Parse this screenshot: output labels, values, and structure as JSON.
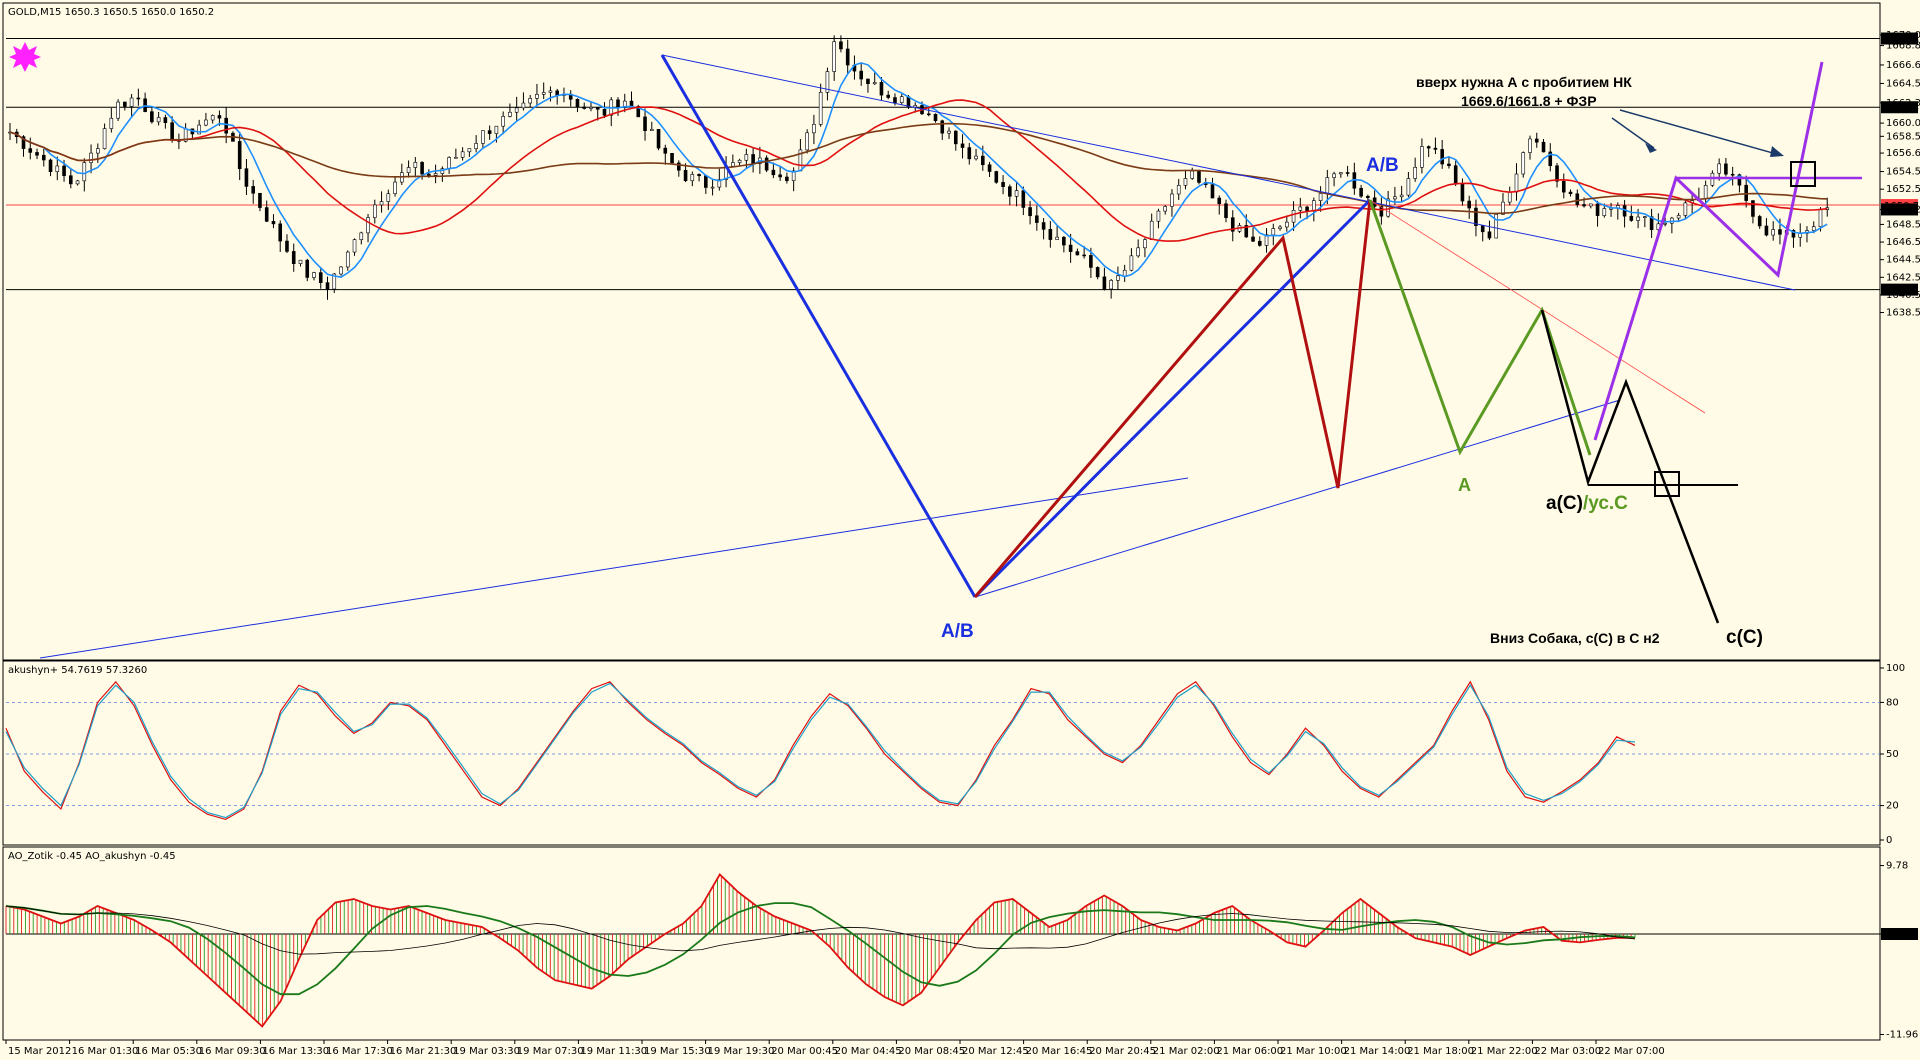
{
  "window": {
    "symbol_header": "GOLD,M15  1650.3 1650.5 1650.0 1650.2",
    "pink_marker": "star-marker-icon"
  },
  "colors": {
    "background": "#fffbe6",
    "candle": "#000000",
    "ma_fast": "#1e90ff",
    "ma_mid": "#e01010",
    "ma_slow": "#7a3b16",
    "envelope": "#000000",
    "wave_ab_blue": "#1a2fe0",
    "wave_red": "#b01010",
    "wave_green": "#5a9a22",
    "wave_violet": "#9b30e8",
    "wave_black": "#000000",
    "level_red": "#ff4040",
    "grid_dashed": "#5a7de0"
  },
  "chart_data": [
    {
      "type": "line",
      "title": "GOLD,M15  1650.3 1650.5 1650.0 1650.2",
      "subtype": "candlestick",
      "ylim": [
        1637.5,
        1671.0
      ],
      "y_ticks": [
        "1670.0",
        "1668.8",
        "1666.6",
        "1664.5",
        "1662.3",
        "1660.0",
        "1658.5",
        "1656.6",
        "1654.5",
        "1652.5",
        "1650.2",
        "1648.5",
        "1646.5",
        "1644.5",
        "1642.5",
        "1640.5",
        "1638.5"
      ],
      "price_labels": [
        {
          "value": 1669.6,
          "label": "1669.6",
          "style": "black"
        },
        {
          "value": 1661.8,
          "label": "1661.8",
          "style": "black"
        },
        {
          "value": 1650.7,
          "label": "1650.7",
          "style": "red"
        },
        {
          "value": 1650.2,
          "label": "1650.2",
          "style": "black"
        },
        {
          "value": 1641.1,
          "label": "1641.1",
          "style": "black"
        }
      ],
      "x_ticks": [
        "15 Mar 2012",
        "16 Mar 01:30",
        "16 Mar 05:30",
        "16 Mar 09:30",
        "16 Mar 13:30",
        "16 Mar 17:30",
        "16 Mar 21:30",
        "19 Mar 03:30",
        "19 Mar 07:30",
        "19 Mar 11:30",
        "19 Mar 15:30",
        "19 Mar 19:30",
        "20 Mar 00:45",
        "20 Mar 04:45",
        "20 Mar 08:45",
        "20 Mar 12:45",
        "20 Mar 16:45",
        "20 Mar 20:45",
        "21 Mar 02:00",
        "21 Mar 06:00",
        "21 Mar 10:00",
        "21 Mar 14:00",
        "21 Mar 18:00",
        "21 Mar 22:00",
        "22 Mar 03:00",
        "22 Mar 07:00"
      ],
      "price_path": [
        1659,
        1657,
        1655,
        1653,
        1657,
        1662,
        1663,
        1660,
        1658,
        1660,
        1661,
        1654,
        1650,
        1646,
        1643,
        1641.5,
        1645,
        1650,
        1653,
        1655,
        1654,
        1656,
        1658,
        1660,
        1661,
        1663,
        1664,
        1662,
        1661,
        1663,
        1660,
        1656,
        1654,
        1653,
        1655,
        1656,
        1655,
        1654,
        1660,
        1669.6,
        1666,
        1664,
        1663,
        1662,
        1660,
        1657,
        1655,
        1653,
        1651,
        1648,
        1646,
        1644,
        1641.2,
        1644,
        1648,
        1652,
        1654,
        1651,
        1648,
        1646,
        1648,
        1650,
        1652,
        1655,
        1652,
        1650,
        1653,
        1658,
        1655,
        1650,
        1647,
        1653,
        1659,
        1655,
        1651,
        1650,
        1651,
        1649,
        1648.5,
        1650,
        1652,
        1655,
        1652,
        1648,
        1647,
        1648,
        1650.2
      ],
      "annotations": [
        {
          "text": "A/B",
          "value": 1662.4,
          "color": "#1a2fe0"
        },
        {
          "text": "A/B",
          "value": 1639.9,
          "color": "#1a2fe0"
        },
        {
          "text": "A",
          "value": 1647.2,
          "color": "#5a9a22"
        },
        {
          "text": "a(C)",
          "value": 1646.2,
          "color": "#000000"
        },
        {
          "text": "/ус.С",
          "value": 1646.2,
          "color": "#5a9a22"
        },
        {
          "text": "c(C)",
          "value": 1639.3,
          "color": "#000000"
        },
        {
          "text": "вверх нужна А с пробитием НК",
          "value": 1668.0,
          "color": "#000000"
        },
        {
          "text": "1669.6/1661.8 + ФЗР",
          "value": 1667.3,
          "color": "#000000"
        },
        {
          "text": "Вниз Собака, с(С) в С н2",
          "value": 1639.3,
          "color": "#000000"
        }
      ]
    },
    {
      "type": "line",
      "title": "akushyn+ 54.7619 57.3260",
      "ylim": [
        0,
        100
      ],
      "y_ticks": [
        "100",
        "80",
        "50",
        "20",
        "0"
      ],
      "series": [
        {
          "name": "akushyn+ 54.7619",
          "values": [
            65,
            40,
            28,
            18,
            45,
            80,
            92,
            78,
            55,
            35,
            22,
            15,
            12,
            18,
            40,
            75,
            90,
            85,
            72,
            62,
            68,
            80,
            78,
            70,
            55,
            40,
            25,
            20,
            30,
            45,
            60,
            75,
            88,
            92,
            80,
            70,
            62,
            55,
            45,
            38,
            30,
            25,
            35,
            55,
            72,
            85,
            78,
            65,
            50,
            40,
            30,
            22,
            20,
            35,
            55,
            70,
            88,
            85,
            70,
            60,
            50,
            45,
            55,
            70,
            85,
            92,
            78,
            60,
            45,
            38,
            50,
            65,
            55,
            40,
            30,
            25,
            35,
            45,
            55,
            75,
            92,
            70,
            40,
            25,
            22,
            28,
            35,
            45,
            60,
            55
          ]
        },
        {
          "name": "57.3260",
          "values": [
            63,
            42,
            30,
            20,
            44,
            78,
            90,
            80,
            57,
            37,
            24,
            16,
            13,
            19,
            39,
            73,
            88,
            86,
            74,
            63,
            67,
            79,
            79,
            71,
            57,
            42,
            27,
            21,
            29,
            44,
            59,
            74,
            86,
            91,
            81,
            71,
            63,
            56,
            46,
            39,
            31,
            26,
            34,
            53,
            70,
            83,
            79,
            66,
            52,
            41,
            31,
            23,
            21,
            34,
            53,
            69,
            86,
            86,
            72,
            61,
            51,
            46,
            54,
            68,
            83,
            90,
            79,
            62,
            47,
            39,
            49,
            63,
            56,
            42,
            31,
            26,
            34,
            44,
            54,
            73,
            90,
            72,
            42,
            27,
            23,
            27,
            34,
            44,
            58,
            57
          ]
        }
      ]
    },
    {
      "type": "bar",
      "title": "AO_Zotik -0.45  AO_akushyn -0.45",
      "ylim": [
        -11.96,
        9.78
      ],
      "y_ticks": [
        "9.78",
        "0.00",
        "-11.96"
      ],
      "series": [
        {
          "name": "AO_Zotik -0.45",
          "values": [
            4,
            3.5,
            2.5,
            1.5,
            2.5,
            4,
            3,
            2,
            0.5,
            -1,
            -3,
            -5,
            -7,
            -9,
            -11,
            -8,
            -3,
            2,
            4.5,
            5,
            4,
            3.5,
            4,
            3,
            2,
            1.5,
            1,
            -0.5,
            -2,
            -4,
            -5.5,
            -6,
            -6.5,
            -5,
            -3,
            -1.5,
            0,
            1.5,
            4,
            8.5,
            6,
            4,
            2.5,
            1.5,
            0.5,
            -1.5,
            -4,
            -6,
            -7.5,
            -8.5,
            -7,
            -4,
            -1,
            2,
            4.5,
            5,
            3,
            1,
            2,
            4,
            5.5,
            4,
            2,
            1,
            0.5,
            1.5,
            3,
            4,
            2,
            0.5,
            -1,
            -1.5,
            0.5,
            3,
            5,
            3,
            1,
            -0.5,
            -1,
            -1.5,
            -2.5,
            -1.5,
            -0.5,
            0.5,
            1,
            -0.8,
            -1,
            -0.7,
            -0.45,
            -0.45
          ]
        }
      ]
    }
  ]
}
